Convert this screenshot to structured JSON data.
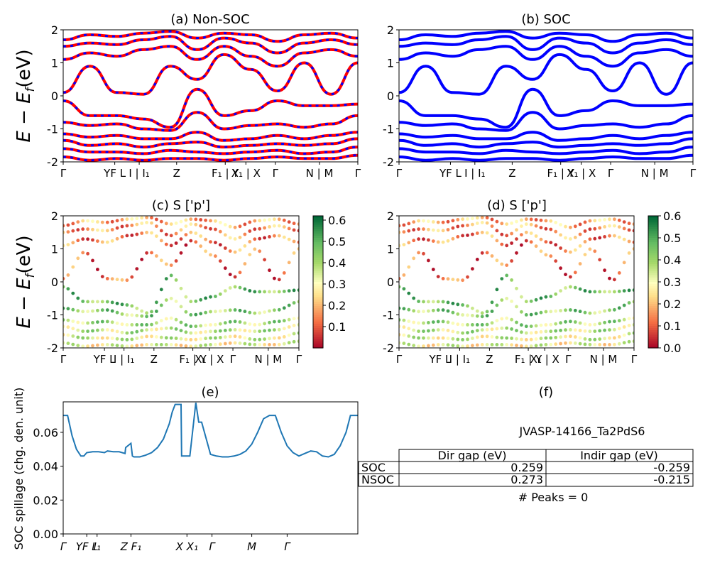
{
  "figure": {
    "band_ylabel": "E − E",
    "band_ylabel_sub": "f",
    "band_ylabel_unit": "(eV)",
    "kpath_labels": [
      "Γ",
      "YF L",
      "I | I₁",
      "Z",
      "F₁ | Y",
      "X₁ | X",
      "Γ",
      "N | M",
      "Γ"
    ],
    "spillage_kpath_labels": [
      "Γ",
      "YF L",
      "I₁",
      "Z F₁",
      "X X₁",
      "Γ",
      "M",
      "Γ"
    ]
  },
  "chart_data": [
    {
      "id": "a",
      "type": "line",
      "title": "(a) Non-SOC",
      "ylim": [
        -2,
        2
      ],
      "yticks": [
        -2,
        -1,
        0,
        1,
        2
      ],
      "series": [
        {
          "color": "#ff0000",
          "style": "solid"
        },
        {
          "color": "#0000ff",
          "style": "dashed"
        }
      ],
      "bands": {
        "valence": [
          [
            -0.15,
            -0.6,
            -0.6,
            -0.7,
            -0.95,
            0.2,
            -0.6,
            -0.45,
            -0.15,
            -0.3,
            -0.3,
            -0.25
          ],
          [
            -0.8,
            -0.9,
            -0.85,
            -1.0,
            -1.05,
            -0.5,
            -1.0,
            -0.9,
            -0.85,
            -0.95,
            -0.85,
            -0.6
          ],
          [
            -1.15,
            -1.25,
            -1.2,
            -1.3,
            -1.3,
            -1.1,
            -1.35,
            -1.3,
            -1.2,
            -1.3,
            -1.2,
            -1.1
          ],
          [
            -1.35,
            -1.5,
            -1.45,
            -1.55,
            -1.45,
            -1.4,
            -1.55,
            -1.5,
            -1.45,
            -1.5,
            -1.45,
            -1.3
          ],
          [
            -1.6,
            -1.7,
            -1.7,
            -1.75,
            -1.65,
            -1.7,
            -1.75,
            -1.7,
            -1.65,
            -1.75,
            -1.7,
            -1.55
          ],
          [
            -1.85,
            -1.95,
            -1.9,
            -1.95,
            -1.9,
            -1.9,
            -1.95,
            -1.9,
            -1.85,
            -1.9,
            -1.9,
            -1.8
          ]
        ],
        "conduction": [
          [
            0.1,
            0.9,
            0.1,
            0.05,
            0.9,
            0.5,
            1.25,
            0.8,
            0.15,
            1.0,
            0.05,
            1.0
          ],
          [
            1.1,
            1.3,
            1.2,
            1.4,
            1.5,
            1.1,
            1.5,
            1.2,
            0.9,
            1.3,
            1.4,
            1.2
          ],
          [
            1.5,
            1.6,
            1.55,
            1.7,
            1.8,
            1.4,
            1.75,
            1.6,
            1.3,
            1.6,
            1.7,
            1.55
          ],
          [
            1.7,
            1.85,
            1.8,
            1.9,
            1.95,
            1.75,
            1.9,
            1.85,
            1.65,
            1.85,
            1.9,
            1.75
          ]
        ]
      }
    },
    {
      "id": "b",
      "type": "line",
      "title": "(b) SOC",
      "ylim": [
        -2,
        2
      ],
      "yticks": [
        -2,
        -1,
        0,
        1,
        2
      ],
      "series": [
        {
          "color": "#0000ff",
          "style": "solid"
        }
      ],
      "bands": {
        "valence": [
          [
            -0.15,
            -0.6,
            -0.6,
            -0.7,
            -0.95,
            0.2,
            -0.6,
            -0.45,
            -0.15,
            -0.3,
            -0.3,
            -0.25
          ],
          [
            -0.8,
            -0.9,
            -0.85,
            -1.0,
            -1.05,
            -0.5,
            -1.0,
            -0.9,
            -0.85,
            -0.95,
            -0.85,
            -0.6
          ],
          [
            -1.15,
            -1.25,
            -1.2,
            -1.3,
            -1.3,
            -1.1,
            -1.35,
            -1.3,
            -1.2,
            -1.3,
            -1.2,
            -1.1
          ],
          [
            -1.35,
            -1.5,
            -1.45,
            -1.55,
            -1.45,
            -1.4,
            -1.55,
            -1.5,
            -1.45,
            -1.5,
            -1.45,
            -1.3
          ],
          [
            -1.6,
            -1.7,
            -1.7,
            -1.75,
            -1.65,
            -1.7,
            -1.75,
            -1.7,
            -1.65,
            -1.75,
            -1.7,
            -1.55
          ],
          [
            -1.85,
            -1.95,
            -1.9,
            -1.95,
            -1.9,
            -1.9,
            -1.95,
            -1.9,
            -1.85,
            -1.9,
            -1.9,
            -1.8
          ]
        ],
        "conduction": [
          [
            0.1,
            0.9,
            0.1,
            0.05,
            0.9,
            0.5,
            1.25,
            0.8,
            0.15,
            1.0,
            0.05,
            1.0
          ],
          [
            1.1,
            1.3,
            1.2,
            1.4,
            1.5,
            1.1,
            1.5,
            1.2,
            0.9,
            1.3,
            1.4,
            1.2
          ],
          [
            1.5,
            1.6,
            1.55,
            1.7,
            1.8,
            1.4,
            1.75,
            1.6,
            1.3,
            1.6,
            1.7,
            1.55
          ],
          [
            1.7,
            1.85,
            1.8,
            1.9,
            1.95,
            1.75,
            1.9,
            1.85,
            1.65,
            1.85,
            1.9,
            1.75
          ]
        ]
      }
    },
    {
      "id": "c",
      "type": "scatter",
      "title": "(c)  S ['p']",
      "ylim": [
        -2,
        2
      ],
      "yticks": [
        -2,
        -1,
        0,
        1,
        2
      ],
      "colorbar": {
        "min": 0.0,
        "max": 0.62,
        "ticks": [
          0.1,
          0.2,
          0.3,
          0.4,
          0.5,
          0.6
        ],
        "colormap": "RdYlGn"
      }
    },
    {
      "id": "d",
      "type": "scatter",
      "title": "(d) S ['p']",
      "ylim": [
        -2,
        2
      ],
      "yticks": [
        -2,
        -1,
        0,
        1,
        2
      ],
      "colorbar": {
        "min": 0.0,
        "max": 0.6,
        "ticks": [
          0.0,
          0.1,
          0.2,
          0.3,
          0.4,
          0.5,
          0.6
        ],
        "colormap": "RdYlGn"
      }
    },
    {
      "id": "e",
      "type": "line",
      "title": "(e)",
      "ylabel": "SOC spillage (chg. den. unit)",
      "ylim": [
        0,
        0.078
      ],
      "yticks": [
        0.0,
        0.02,
        0.04,
        0.06
      ],
      "ytick_labels": [
        "0.00",
        "0.02",
        "0.04",
        "0.06"
      ],
      "series": [
        {
          "color": "#1f77b4",
          "x": [
            0,
            0.015,
            0.03,
            0.045,
            0.06,
            0.07,
            0.08,
            0.1,
            0.12,
            0.14,
            0.15,
            0.17,
            0.19,
            0.21,
            0.212,
            0.23,
            0.235,
            0.24,
            0.26,
            0.28,
            0.3,
            0.32,
            0.34,
            0.36,
            0.37,
            0.38,
            0.385,
            0.4,
            0.402,
            0.415,
            0.43,
            0.45,
            0.46,
            0.47,
            0.5,
            0.52,
            0.54,
            0.56,
            0.58,
            0.6,
            0.62,
            0.64,
            0.66,
            0.68,
            0.7,
            0.72,
            0.74,
            0.76,
            0.78,
            0.8,
            0.82,
            0.84,
            0.86,
            0.88,
            0.9,
            0.92,
            0.94,
            0.96,
            0.975,
            1.0
          ],
          "y": [
            0.07,
            0.07,
            0.058,
            0.05,
            0.046,
            0.046,
            0.048,
            0.0485,
            0.0485,
            0.048,
            0.049,
            0.0485,
            0.0485,
            0.0475,
            0.051,
            0.0535,
            0.046,
            0.0455,
            0.0455,
            0.0465,
            0.048,
            0.051,
            0.056,
            0.065,
            0.072,
            0.0765,
            0.0765,
            0.0765,
            0.046,
            0.046,
            0.046,
            0.0775,
            0.066,
            0.066,
            0.047,
            0.046,
            0.0455,
            0.0455,
            0.046,
            0.047,
            0.049,
            0.053,
            0.06,
            0.068,
            0.07,
            0.07,
            0.06,
            0.052,
            0.048,
            0.046,
            0.0475,
            0.049,
            0.0485,
            0.046,
            0.0455,
            0.047,
            0.052,
            0.06,
            0.07,
            0.07
          ]
        }
      ]
    },
    {
      "id": "f",
      "type": "table",
      "title": "(f)",
      "material": "JVASP-14166_Ta2PdS6",
      "columns": [
        "Dir gap (eV)",
        "Indir gap (eV)"
      ],
      "rows": [
        {
          "label": "SOC",
          "dir": "0.259",
          "indir": "-0.259"
        },
        {
          "label": "NSOC",
          "dir": "0.273",
          "indir": "-0.215"
        }
      ],
      "peaks": "# Peaks = 0"
    }
  ]
}
